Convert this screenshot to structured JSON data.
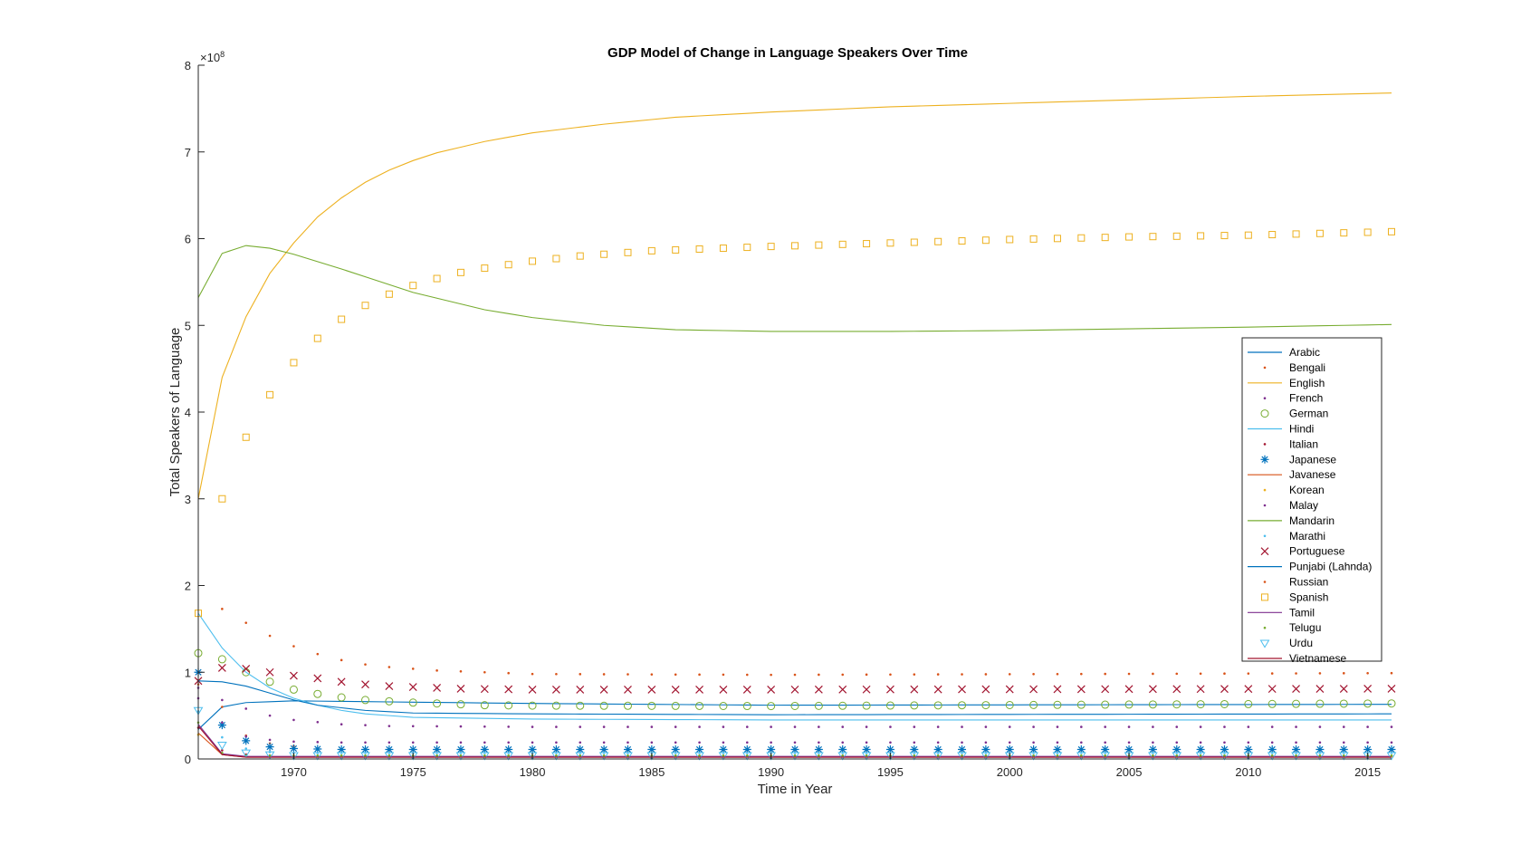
{
  "chart_data": {
    "type": "line",
    "title": "GDP Model of Change in Language Speakers Over Time",
    "xlabel": "Time in Year",
    "ylabel": "Total Speakers of Language",
    "y_exponent_label": "×10",
    "y_exponent_power": "8",
    "y_scale": 100000000,
    "xlim": [
      1966,
      2016
    ],
    "ylim": [
      0,
      8
    ],
    "x_ticks": [
      1970,
      1975,
      1980,
      1985,
      1990,
      1995,
      2000,
      2005,
      2010,
      2015
    ],
    "x_tick_labels": [
      "1970",
      "1975",
      "1980",
      "1985",
      "1990",
      "1995",
      "2000",
      "2005",
      "2010",
      "2015"
    ],
    "y_ticks": [
      0,
      1,
      2,
      3,
      4,
      5,
      6,
      7,
      8
    ],
    "y_tick_labels": [
      "0",
      "1",
      "2",
      "3",
      "4",
      "5",
      "6",
      "7",
      "8"
    ],
    "legend_position": "right",
    "grid": false,
    "series": [
      {
        "name": "Arabic",
        "style": "line",
        "color": "#0072BD",
        "anchors": [
          [
            1966,
            0.34
          ],
          [
            1967,
            0.6
          ],
          [
            1968,
            0.65
          ],
          [
            1970,
            0.67
          ],
          [
            1975,
            0.655
          ],
          [
            1980,
            0.64
          ],
          [
            1990,
            0.62
          ],
          [
            2016,
            0.63
          ]
        ]
      },
      {
        "name": "Bengali",
        "style": "dot",
        "color": "#D95319",
        "anchors": [
          [
            1966,
            0.86
          ],
          [
            1967,
            0.6
          ],
          [
            1968,
            0.27
          ],
          [
            1969,
            0.18
          ],
          [
            1971,
            0.12
          ],
          [
            1974,
            0.1
          ],
          [
            2016,
            0.1
          ]
        ]
      },
      {
        "name": "English",
        "style": "line",
        "color": "#EDB120",
        "anchors": [
          [
            1966,
            3.0
          ],
          [
            1967,
            4.4
          ],
          [
            1968,
            5.1
          ],
          [
            1969,
            5.6
          ],
          [
            1970,
            5.95
          ],
          [
            1971,
            6.25
          ],
          [
            1972,
            6.47
          ],
          [
            1973,
            6.65
          ],
          [
            1974,
            6.79
          ],
          [
            1975,
            6.9
          ],
          [
            1976,
            6.99
          ],
          [
            1978,
            7.12
          ],
          [
            1980,
            7.22
          ],
          [
            1983,
            7.32
          ],
          [
            1986,
            7.4
          ],
          [
            1990,
            7.46
          ],
          [
            1995,
            7.52
          ],
          [
            2000,
            7.56
          ],
          [
            2005,
            7.6
          ],
          [
            2010,
            7.64
          ],
          [
            2016,
            7.68
          ]
        ]
      },
      {
        "name": "French",
        "style": "dot",
        "color": "#7E2F8E",
        "anchors": [
          [
            1966,
            0.82
          ],
          [
            1967,
            0.68
          ],
          [
            1968,
            0.58
          ],
          [
            1969,
            0.5
          ],
          [
            1970,
            0.45
          ],
          [
            1972,
            0.4
          ],
          [
            1974,
            0.38
          ],
          [
            1980,
            0.37
          ],
          [
            2016,
            0.37
          ]
        ]
      },
      {
        "name": "German",
        "style": "circle",
        "color": "#77AC30",
        "anchors": [
          [
            1966,
            1.22
          ],
          [
            1967,
            1.15
          ],
          [
            1968,
            1.0
          ],
          [
            1969,
            0.89
          ],
          [
            1970,
            0.8
          ],
          [
            1971,
            0.75
          ],
          [
            1972,
            0.71
          ],
          [
            1973,
            0.68
          ],
          [
            1975,
            0.65
          ],
          [
            1978,
            0.62
          ],
          [
            1980,
            0.615
          ],
          [
            1990,
            0.61
          ],
          [
            2016,
            0.64
          ]
        ]
      },
      {
        "name": "Hindi",
        "style": "line",
        "color": "#4DBEEE",
        "anchors": [
          [
            1966,
            1.68
          ],
          [
            1967,
            1.28
          ],
          [
            1968,
            1.0
          ],
          [
            1969,
            0.82
          ],
          [
            1970,
            0.7
          ],
          [
            1971,
            0.62
          ],
          [
            1972,
            0.56
          ],
          [
            1973,
            0.52
          ],
          [
            1975,
            0.48
          ],
          [
            1980,
            0.46
          ],
          [
            1990,
            0.45
          ],
          [
            2016,
            0.45
          ]
        ]
      },
      {
        "name": "Italian",
        "style": "dot",
        "color": "#A2142F",
        "anchors": [
          [
            1966,
            0.36
          ],
          [
            1967,
            0.1
          ],
          [
            1968,
            0.05
          ],
          [
            1970,
            0.03
          ],
          [
            2016,
            0.03
          ]
        ]
      },
      {
        "name": "Japanese",
        "style": "star",
        "color": "#0072BD",
        "anchors": [
          [
            1966,
            1.0
          ],
          [
            1967,
            0.39
          ],
          [
            1968,
            0.21
          ],
          [
            1969,
            0.14
          ],
          [
            1970,
            0.12
          ],
          [
            1972,
            0.11
          ],
          [
            2016,
            0.11
          ]
        ]
      },
      {
        "name": "Javanese",
        "style": "line",
        "color": "#D95319",
        "anchors": [
          [
            1966,
            0.3
          ],
          [
            1967,
            0.05
          ],
          [
            1968,
            0.02
          ],
          [
            2016,
            0.02
          ]
        ]
      },
      {
        "name": "Korean",
        "style": "dot",
        "color": "#EDB120",
        "anchors": [
          [
            1966,
            0.28
          ],
          [
            1967,
            0.06
          ],
          [
            1968,
            0.03
          ],
          [
            2016,
            0.03
          ]
        ]
      },
      {
        "name": "Malay",
        "style": "dot",
        "color": "#7E2F8E",
        "anchors": [
          [
            1966,
            0.7
          ],
          [
            1967,
            0.42
          ],
          [
            1968,
            0.26
          ],
          [
            1969,
            0.22
          ],
          [
            1970,
            0.2
          ],
          [
            1972,
            0.19
          ],
          [
            2016,
            0.19
          ]
        ]
      },
      {
        "name": "Mandarin",
        "style": "line",
        "color": "#77AC30",
        "anchors": [
          [
            1966,
            5.32
          ],
          [
            1967,
            5.83
          ],
          [
            1968,
            5.92
          ],
          [
            1969,
            5.89
          ],
          [
            1970,
            5.82
          ],
          [
            1972,
            5.65
          ],
          [
            1975,
            5.38
          ],
          [
            1978,
            5.18
          ],
          [
            1980,
            5.09
          ],
          [
            1983,
            5.0
          ],
          [
            1986,
            4.95
          ],
          [
            1990,
            4.93
          ],
          [
            1995,
            4.93
          ],
          [
            2000,
            4.94
          ],
          [
            2005,
            4.96
          ],
          [
            2010,
            4.98
          ],
          [
            2016,
            5.01
          ]
        ]
      },
      {
        "name": "Marathi",
        "style": "dot",
        "color": "#4DBEEE",
        "anchors": [
          [
            1966,
            0.55
          ],
          [
            1967,
            0.25
          ],
          [
            1968,
            0.12
          ],
          [
            1969,
            0.08
          ],
          [
            1970,
            0.07
          ],
          [
            2016,
            0.07
          ]
        ]
      },
      {
        "name": "Portuguese",
        "style": "x",
        "color": "#A2142F",
        "anchors": [
          [
            1966,
            0.9
          ],
          [
            1967,
            1.05
          ],
          [
            1968,
            1.04
          ],
          [
            1969,
            1.0
          ],
          [
            1970,
            0.96
          ],
          [
            1971,
            0.93
          ],
          [
            1972,
            0.89
          ],
          [
            1973,
            0.86
          ],
          [
            1974,
            0.84
          ],
          [
            1975,
            0.83
          ],
          [
            1977,
            0.81
          ],
          [
            1980,
            0.8
          ],
          [
            1990,
            0.8
          ],
          [
            2016,
            0.81
          ]
        ]
      },
      {
        "name": "Punjabi (Lahnda)",
        "style": "line",
        "color": "#0072BD",
        "anchors": [
          [
            1966,
            0.9
          ],
          [
            1967,
            0.89
          ],
          [
            1968,
            0.84
          ],
          [
            1969,
            0.76
          ],
          [
            1970,
            0.68
          ],
          [
            1971,
            0.62
          ],
          [
            1973,
            0.56
          ],
          [
            1975,
            0.53
          ],
          [
            1980,
            0.52
          ],
          [
            1990,
            0.51
          ],
          [
            2016,
            0.52
          ]
        ]
      },
      {
        "name": "Russian",
        "style": "dot",
        "color": "#D95319",
        "anchors": [
          [
            1967,
            1.73
          ],
          [
            1968,
            1.57
          ],
          [
            1969,
            1.42
          ],
          [
            1970,
            1.3
          ],
          [
            1971,
            1.21
          ],
          [
            1972,
            1.14
          ],
          [
            1973,
            1.09
          ],
          [
            1974,
            1.06
          ],
          [
            1975,
            1.04
          ],
          [
            1976,
            1.02
          ],
          [
            1978,
            1.0
          ],
          [
            1980,
            0.98
          ],
          [
            1990,
            0.97
          ],
          [
            2016,
            0.99
          ]
        ]
      },
      {
        "name": "Spanish",
        "style": "square",
        "color": "#EDB120",
        "anchors": [
          [
            1966,
            1.68
          ],
          [
            1967,
            3.0
          ],
          [
            1968,
            3.71
          ],
          [
            1969,
            4.2
          ],
          [
            1970,
            4.57
          ],
          [
            1971,
            4.85
          ],
          [
            1972,
            5.07
          ],
          [
            1973,
            5.23
          ],
          [
            1974,
            5.36
          ],
          [
            1975,
            5.46
          ],
          [
            1976,
            5.54
          ],
          [
            1977,
            5.61
          ],
          [
            1978,
            5.66
          ],
          [
            1979,
            5.7
          ],
          [
            1980,
            5.74
          ],
          [
            1982,
            5.8
          ],
          [
            1985,
            5.86
          ],
          [
            1990,
            5.91
          ],
          [
            1995,
            5.95
          ],
          [
            2000,
            5.99
          ],
          [
            2005,
            6.02
          ],
          [
            2010,
            6.04
          ],
          [
            2016,
            6.08
          ]
        ]
      },
      {
        "name": "Tamil",
        "style": "line",
        "color": "#7E2F8E",
        "anchors": [
          [
            1966,
            0.4
          ],
          [
            1967,
            0.06
          ],
          [
            1968,
            0.03
          ],
          [
            2016,
            0.03
          ]
        ]
      },
      {
        "name": "Telugu",
        "style": "dot",
        "color": "#77AC30",
        "anchors": [
          [
            1966,
            0.42
          ],
          [
            1967,
            0.07
          ],
          [
            1968,
            0.04
          ],
          [
            2016,
            0.04
          ]
        ]
      },
      {
        "name": "Urdu",
        "style": "triangle",
        "color": "#4DBEEE",
        "anchors": [
          [
            1966,
            0.56
          ],
          [
            1967,
            0.16
          ],
          [
            1968,
            0.07
          ],
          [
            1969,
            0.05
          ],
          [
            1970,
            0.04
          ],
          [
            2016,
            0.04
          ]
        ]
      },
      {
        "name": "Vietnamese",
        "style": "line",
        "color": "#A2142F",
        "anchors": [
          [
            1966,
            0.38
          ],
          [
            1967,
            0.05
          ],
          [
            1968,
            0.02
          ],
          [
            2016,
            0.02
          ]
        ]
      }
    ]
  }
}
